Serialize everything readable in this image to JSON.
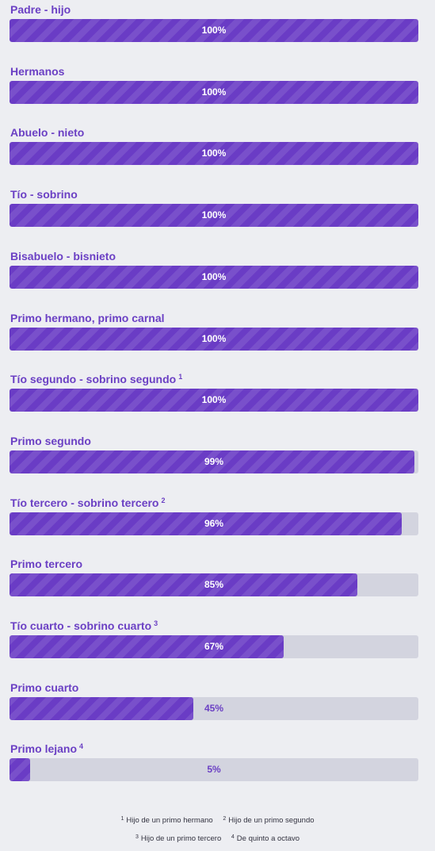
{
  "colors": {
    "background": "#edeef2",
    "label": "#6b40c4",
    "fill": "#6a3cc5",
    "track": "#d3d4df"
  },
  "items": [
    {
      "label": "Padre - hijo",
      "sup": "",
      "percent_text": "100%",
      "value": 100
    },
    {
      "label": "Hermanos",
      "sup": "",
      "percent_text": "100%",
      "value": 100
    },
    {
      "label": "Abuelo - nieto",
      "sup": "",
      "percent_text": "100%",
      "value": 100
    },
    {
      "label": "Tío - sobrino",
      "sup": "",
      "percent_text": "100%",
      "value": 100
    },
    {
      "label": "Bisabuelo - bisnieto",
      "sup": "",
      "percent_text": "100%",
      "value": 100
    },
    {
      "label": "Primo hermano, primo carnal",
      "sup": "",
      "percent_text": "100%",
      "value": 100
    },
    {
      "label": "Tío segundo - sobrino segundo",
      "sup": "1",
      "percent_text": "100%",
      "value": 100
    },
    {
      "label": "Primo segundo",
      "sup": "",
      "percent_text": "99%",
      "value": 99
    },
    {
      "label": "Tío tercero - sobrino tercero",
      "sup": "2",
      "percent_text": "96%",
      "value": 96
    },
    {
      "label": "Primo tercero",
      "sup": "",
      "percent_text": "85%",
      "value": 85
    },
    {
      "label": "Tío cuarto - sobrino cuarto",
      "sup": "3",
      "percent_text": "67%",
      "value": 67
    },
    {
      "label": "Primo cuarto",
      "sup": "",
      "percent_text": "45%",
      "value": 45
    },
    {
      "label": "Primo lejano",
      "sup": "4",
      "percent_text": "5%",
      "value": 5
    }
  ],
  "footnotes": {
    "row1": [
      {
        "mark": "1",
        "text": "Hijo de un primo hermano"
      },
      {
        "mark": "2",
        "text": "Hijo de un primo segundo"
      }
    ],
    "row2": [
      {
        "mark": "3",
        "text": "Hijo de un primo tercero"
      },
      {
        "mark": "4",
        "text": "De quinto a octavo"
      }
    ]
  }
}
